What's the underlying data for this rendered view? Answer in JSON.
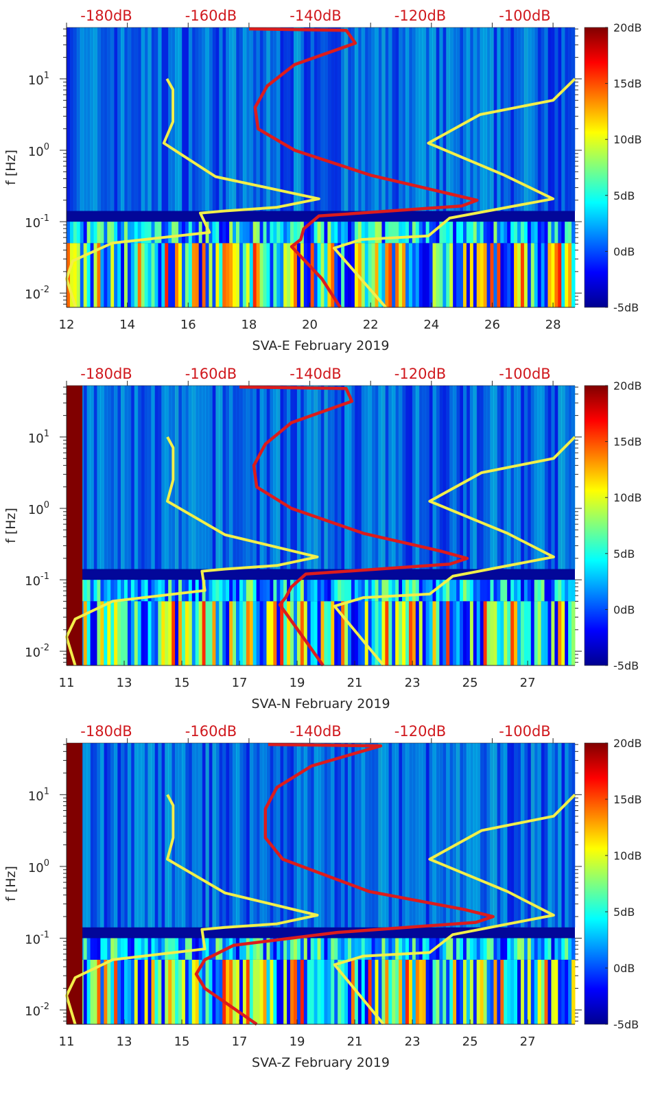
{
  "chart_data": [
    {
      "type": "heatmap",
      "station": "SVA-E",
      "xlabel": "SVA-E February 2019",
      "ylabel": "f [Hz]",
      "xlim": [
        12,
        28.72
      ],
      "ylim_log10": [
        -2.2,
        1.72
      ],
      "xticks": [
        12,
        14,
        16,
        18,
        20,
        22,
        24,
        26,
        28
      ],
      "xtick_labels": [
        "12",
        "14",
        "16",
        "18",
        "20",
        "22",
        "24",
        "26",
        "28"
      ],
      "yticks_log10": [
        1,
        0,
        -1,
        -2
      ],
      "ytick_labels": [
        {
          "base": "10",
          "exp": "1"
        },
        {
          "base": "10",
          "exp": "0"
        },
        {
          "base": "10",
          "exp": "-1"
        },
        {
          "base": "10",
          "exp": "-2"
        }
      ],
      "top_axis_labels": [
        "-180dB",
        "-160dB",
        "-140dB",
        "-120dB",
        "-100dB"
      ],
      "colorbar": {
        "labels": [
          "20dB",
          "15dB",
          "10dB",
          "5dB",
          "0dB",
          "-5dB"
        ],
        "range": [
          -5,
          20
        ]
      },
      "dead_channel_until": null,
      "yellow_curve": [
        [
          15.3,
          1.0
        ],
        [
          15.5,
          0.85
        ],
        [
          15.5,
          0.4
        ],
        [
          15.2,
          0.1
        ],
        [
          16.9,
          -0.37
        ],
        [
          20.3,
          -0.68
        ],
        [
          18.9,
          -0.8
        ],
        [
          17.2,
          -0.85
        ],
        [
          16.4,
          -0.88
        ],
        [
          16.7,
          -1.15
        ],
        [
          13.5,
          -1.3
        ],
        [
          12.2,
          -1.55
        ],
        [
          12.0,
          -1.8
        ],
        [
          12.3,
          -2.2
        ]
      ],
      "yellow_curve_2": [
        [
          28.72,
          1.0
        ],
        [
          28.0,
          0.7
        ],
        [
          25.6,
          0.5
        ],
        [
          23.9,
          0.1
        ],
        [
          26.4,
          -0.35
        ],
        [
          28.0,
          -0.68
        ],
        [
          24.6,
          -0.95
        ],
        [
          23.9,
          -1.2
        ],
        [
          21.7,
          -1.25
        ],
        [
          20.8,
          -1.37
        ],
        [
          22.5,
          -2.2
        ]
      ],
      "red_curve": [
        [
          18.0,
          1.7
        ],
        [
          21.2,
          1.68
        ],
        [
          21.5,
          1.5
        ],
        [
          19.5,
          1.2
        ],
        [
          18.6,
          0.9
        ],
        [
          18.2,
          0.6
        ],
        [
          18.3,
          0.3
        ],
        [
          19.5,
          0.0
        ],
        [
          22.0,
          -0.35
        ],
        [
          24.5,
          -0.6
        ],
        [
          25.5,
          -0.7
        ],
        [
          25.0,
          -0.78
        ],
        [
          20.3,
          -0.92
        ],
        [
          19.8,
          -1.1
        ],
        [
          19.7,
          -1.25
        ],
        [
          19.4,
          -1.35
        ],
        [
          20.4,
          -1.8
        ],
        [
          21.0,
          -2.2
        ]
      ]
    },
    {
      "type": "heatmap",
      "station": "SVA-N",
      "xlabel": "SVA-N February 2019",
      "ylabel": "f [Hz]",
      "xlim": [
        11,
        28.64
      ],
      "ylim_log10": [
        -2.2,
        1.72
      ],
      "xticks": [
        11,
        13,
        15,
        17,
        19,
        21,
        23,
        25,
        27
      ],
      "xtick_labels": [
        "11",
        "13",
        "15",
        "17",
        "19",
        "21",
        "23",
        "25",
        "27"
      ],
      "yticks_log10": [
        1,
        0,
        -1,
        -2
      ],
      "ytick_labels": [
        {
          "base": "10",
          "exp": "1"
        },
        {
          "base": "10",
          "exp": "0"
        },
        {
          "base": "10",
          "exp": "-1"
        },
        {
          "base": "10",
          "exp": "-2"
        }
      ],
      "top_axis_labels": [
        "-180dB",
        "-160dB",
        "-140dB",
        "-120dB",
        "-100dB"
      ],
      "colorbar": {
        "labels": [
          "20dB",
          "15dB",
          "10dB",
          "5dB",
          "0dB",
          "-5dB"
        ],
        "range": [
          -5,
          20
        ]
      },
      "dead_channel_until": 11.55,
      "yellow_curve": [
        [
          14.5,
          1.0
        ],
        [
          14.7,
          0.85
        ],
        [
          14.7,
          0.4
        ],
        [
          14.5,
          0.1
        ],
        [
          16.5,
          -0.37
        ],
        [
          19.7,
          -0.68
        ],
        [
          18.3,
          -0.8
        ],
        [
          16.5,
          -0.85
        ],
        [
          15.7,
          -0.88
        ],
        [
          15.8,
          -1.15
        ],
        [
          12.6,
          -1.3
        ],
        [
          11.3,
          -1.55
        ],
        [
          11.0,
          -1.8
        ],
        [
          11.3,
          -2.2
        ]
      ],
      "yellow_curve_2": [
        [
          28.64,
          1.0
        ],
        [
          27.9,
          0.7
        ],
        [
          25.4,
          0.5
        ],
        [
          23.6,
          0.1
        ],
        [
          26.3,
          -0.35
        ],
        [
          27.9,
          -0.68
        ],
        [
          24.4,
          -0.95
        ],
        [
          23.6,
          -1.2
        ],
        [
          21.3,
          -1.25
        ],
        [
          20.3,
          -1.37
        ],
        [
          22.0,
          -2.2
        ]
      ],
      "red_curve": [
        [
          17.0,
          1.7
        ],
        [
          20.7,
          1.68
        ],
        [
          20.9,
          1.5
        ],
        [
          18.8,
          1.2
        ],
        [
          17.9,
          0.9
        ],
        [
          17.5,
          0.6
        ],
        [
          17.6,
          0.3
        ],
        [
          18.8,
          0.0
        ],
        [
          21.3,
          -0.35
        ],
        [
          24.0,
          -0.6
        ],
        [
          24.9,
          -0.7
        ],
        [
          24.3,
          -0.78
        ],
        [
          19.3,
          -0.92
        ],
        [
          18.8,
          -1.1
        ],
        [
          18.6,
          -1.25
        ],
        [
          18.4,
          -1.35
        ],
        [
          19.2,
          -1.8
        ],
        [
          19.9,
          -2.2
        ]
      ]
    },
    {
      "type": "heatmap",
      "station": "SVA-Z",
      "xlabel": "SVA-Z February 2019",
      "ylabel": "f [Hz]",
      "xlim": [
        11,
        28.64
      ],
      "ylim_log10": [
        -2.2,
        1.72
      ],
      "xticks": [
        11,
        13,
        15,
        17,
        19,
        21,
        23,
        25,
        27
      ],
      "xtick_labels": [
        "11",
        "13",
        "15",
        "17",
        "19",
        "21",
        "23",
        "25",
        "27"
      ],
      "yticks_log10": [
        1,
        0,
        -1,
        -2
      ],
      "ytick_labels": [
        {
          "base": "10",
          "exp": "1"
        },
        {
          "base": "10",
          "exp": "0"
        },
        {
          "base": "10",
          "exp": "-1"
        },
        {
          "base": "10",
          "exp": "-2"
        }
      ],
      "top_axis_labels": [
        "-180dB",
        "-160dB",
        "-140dB",
        "-120dB",
        "-100dB"
      ],
      "colorbar": {
        "labels": [
          "20dB",
          "15dB",
          "10dB",
          "5dB",
          "0dB",
          "-5dB"
        ],
        "range": [
          -5,
          20
        ]
      },
      "dead_channel_until": 11.55,
      "yellow_curve": [
        [
          14.5,
          1.0
        ],
        [
          14.7,
          0.85
        ],
        [
          14.7,
          0.4
        ],
        [
          14.5,
          0.1
        ],
        [
          16.5,
          -0.37
        ],
        [
          19.7,
          -0.68
        ],
        [
          18.3,
          -0.8
        ],
        [
          16.5,
          -0.85
        ],
        [
          15.7,
          -0.88
        ],
        [
          15.8,
          -1.15
        ],
        [
          12.6,
          -1.3
        ],
        [
          11.3,
          -1.55
        ],
        [
          11.0,
          -1.8
        ],
        [
          11.3,
          -2.2
        ]
      ],
      "yellow_curve_2": [
        [
          28.64,
          1.0
        ],
        [
          27.9,
          0.7
        ],
        [
          25.4,
          0.5
        ],
        [
          23.6,
          0.1
        ],
        [
          26.3,
          -0.35
        ],
        [
          27.9,
          -0.68
        ],
        [
          24.4,
          -0.95
        ],
        [
          23.6,
          -1.2
        ],
        [
          21.3,
          -1.25
        ],
        [
          20.3,
          -1.37
        ],
        [
          22.0,
          -2.2
        ]
      ],
      "red_curve": [
        [
          18.0,
          1.7
        ],
        [
          21.9,
          1.68
        ],
        [
          19.5,
          1.4
        ],
        [
          18.3,
          1.1
        ],
        [
          17.9,
          0.8
        ],
        [
          17.9,
          0.4
        ],
        [
          18.5,
          0.1
        ],
        [
          21.5,
          -0.35
        ],
        [
          24.8,
          -0.6
        ],
        [
          25.8,
          -0.7
        ],
        [
          25.2,
          -0.78
        ],
        [
          20.4,
          -0.92
        ],
        [
          16.8,
          -1.1
        ],
        [
          15.8,
          -1.3
        ],
        [
          15.5,
          -1.5
        ],
        [
          15.8,
          -1.7
        ],
        [
          17.6,
          -2.2
        ]
      ]
    }
  ],
  "colors": {
    "yellow_line": "#f2ef4a",
    "red_line": "#dc1c1c",
    "db_label": "#d0181d",
    "dead_channel": "#800000"
  }
}
